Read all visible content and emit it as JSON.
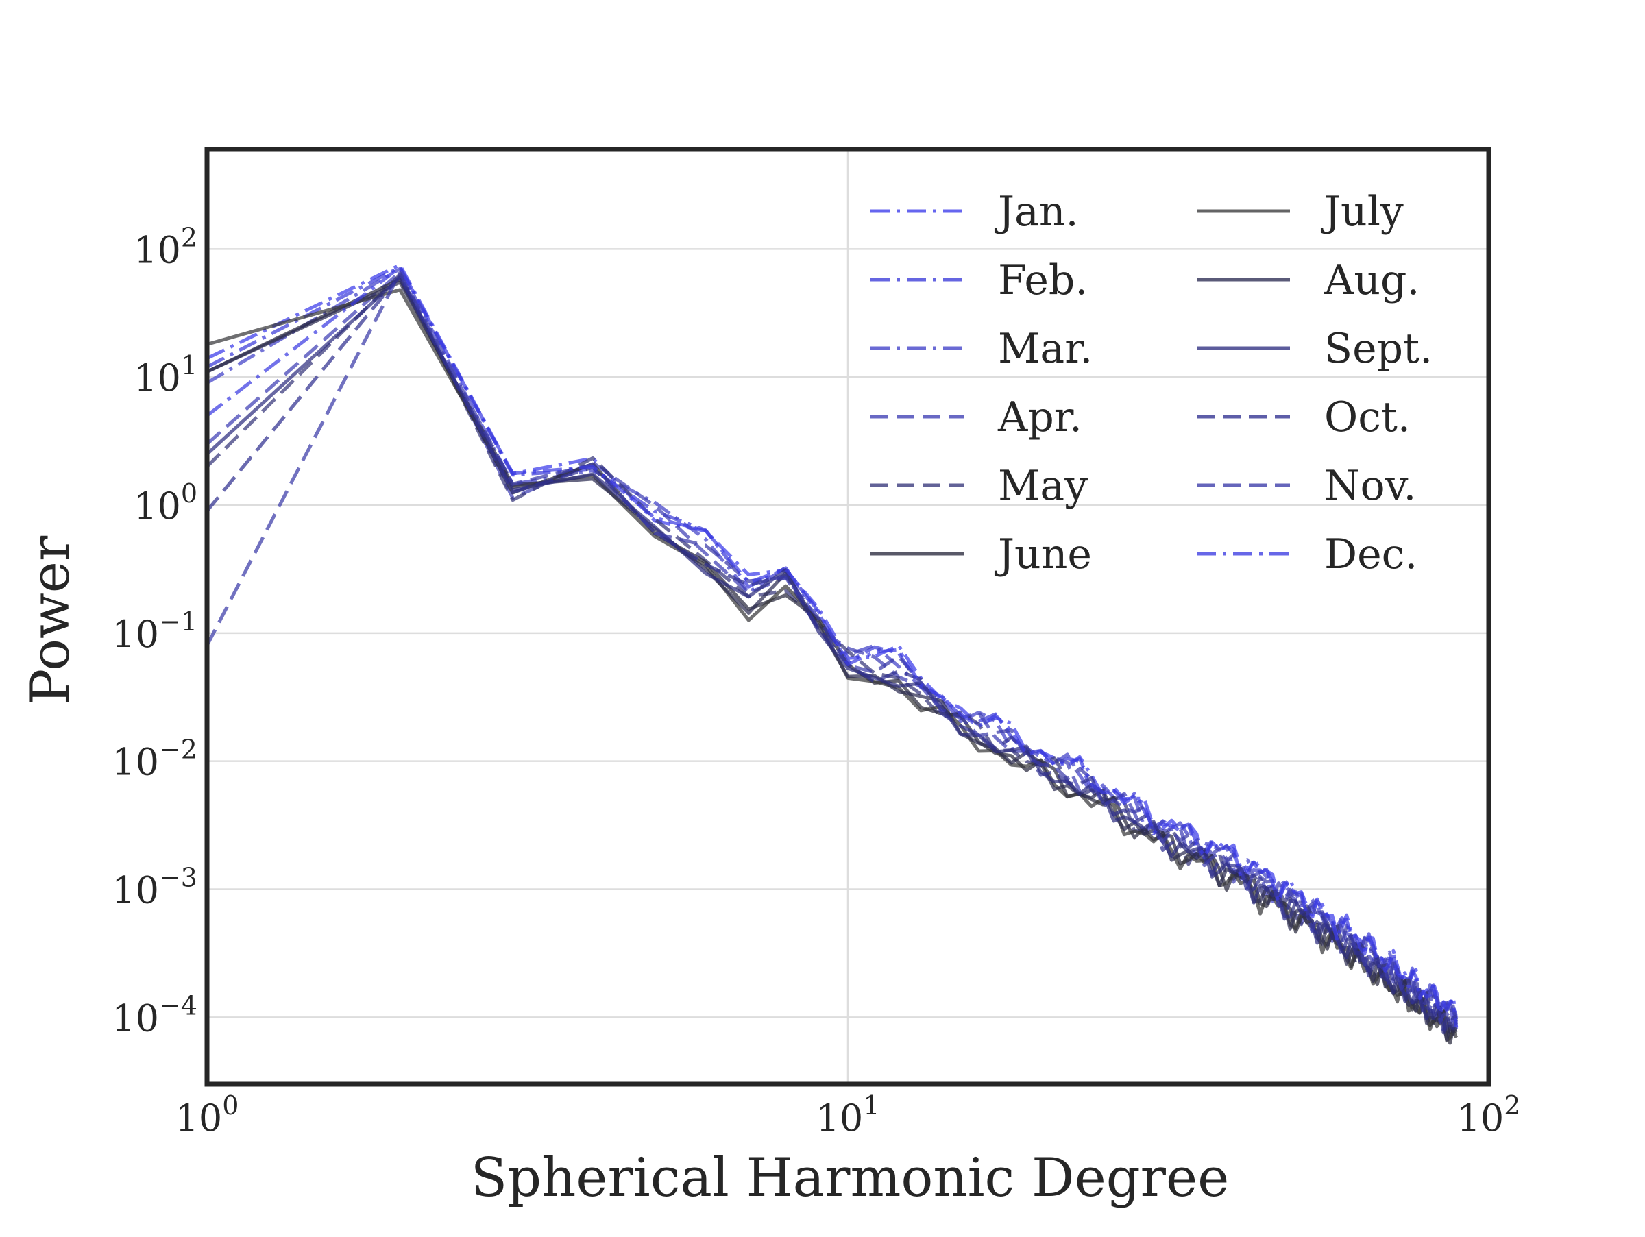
{
  "chart_data": {
    "type": "line",
    "xlabel": "Spherical Harmonic Degree",
    "ylabel": "Power",
    "xscale": "log",
    "yscale": "log",
    "xlim": [
      1,
      100
    ],
    "ylim": [
      3e-05,
      600
    ],
    "grid": true,
    "legend_position": "top-right",
    "legend_columns": 2,
    "x_ticks": [
      {
        "value": 1,
        "base": "10",
        "exp": "0"
      },
      {
        "value": 10,
        "base": "10",
        "exp": "1"
      },
      {
        "value": 100,
        "base": "10",
        "exp": "2"
      }
    ],
    "y_ticks": [
      {
        "value": 100,
        "base": "10",
        "exp": "2"
      },
      {
        "value": 10,
        "base": "10",
        "exp": "1"
      },
      {
        "value": 1,
        "base": "10",
        "exp": "0"
      },
      {
        "value": 0.1,
        "base": "10",
        "exp": "−1"
      },
      {
        "value": 0.01,
        "base": "10",
        "exp": "−2"
      },
      {
        "value": 0.001,
        "base": "10",
        "exp": "−3"
      },
      {
        "value": 0.0001,
        "base": "10",
        "exp": "−4"
      }
    ],
    "trend_degrees": [
      1,
      2,
      3,
      4,
      5,
      6,
      7,
      8,
      10,
      12,
      15,
      20,
      25,
      30,
      40,
      50,
      60,
      70,
      80,
      89
    ],
    "trend_power": [
      12,
      70,
      1.4,
      2.0,
      0.75,
      0.42,
      0.2,
      0.28,
      0.06,
      0.05,
      0.021,
      0.01,
      0.0055,
      0.003,
      0.0015,
      0.00075,
      0.0004,
      0.00022,
      0.00013,
      9e-05
    ],
    "series": [
      {
        "name": "Jan.",
        "style": "dashdot",
        "color": "#3a3aea",
        "l1": 14,
        "l2": 75,
        "scale": 1.25
      },
      {
        "name": "Feb.",
        "style": "dashdot",
        "color": "#3a3ad8",
        "l1": 12,
        "l2": 72,
        "scale": 1.2
      },
      {
        "name": "Mar.",
        "style": "dashdot",
        "color": "#4040c8",
        "l1": 9,
        "l2": 70,
        "scale": 1.15
      },
      {
        "name": "Apr.",
        "style": "dashed",
        "color": "#3e3eb4",
        "l1": 3,
        "l2": 66,
        "scale": 1.05
      },
      {
        "name": "May",
        "style": "dashed",
        "color": "#36367a",
        "l1": 2,
        "l2": 63,
        "scale": 0.95
      },
      {
        "name": "June",
        "style": "solid",
        "color": "#2a2a3e",
        "l1": 11,
        "l2": 58,
        "scale": 0.85
      },
      {
        "name": "July",
        "style": "solid",
        "color": "#38383a",
        "l1": 18,
        "l2": 48,
        "scale": 0.8
      },
      {
        "name": "Aug.",
        "style": "solid",
        "color": "#2c2c52",
        "l1": 11,
        "l2": 55,
        "scale": 0.85
      },
      {
        "name": "Sept.",
        "style": "solid",
        "color": "#2e2e80",
        "l1": 2.5,
        "l2": 60,
        "scale": 0.9
      },
      {
        "name": "Oct.",
        "style": "dashed",
        "color": "#303090",
        "l1": 0.9,
        "l2": 62,
        "scale": 0.95
      },
      {
        "name": "Nov.",
        "style": "dashed",
        "color": "#3a3aa8",
        "l1": 0.08,
        "l2": 65,
        "scale": 1.05
      },
      {
        "name": "Dec.",
        "style": "dashdot",
        "color": "#3c3ce2",
        "l1": 5,
        "l2": 72,
        "scale": 1.2
      }
    ]
  }
}
